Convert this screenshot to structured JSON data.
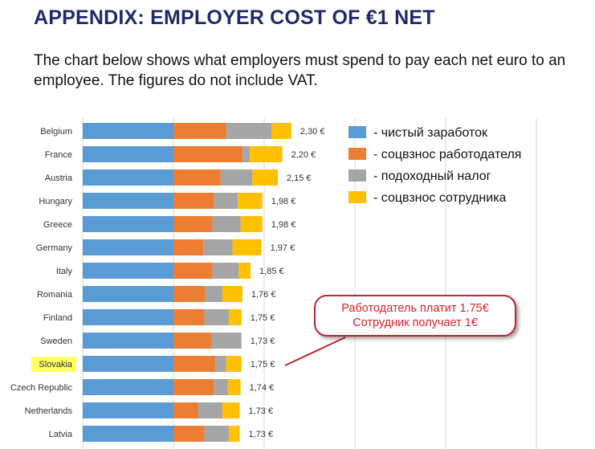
{
  "header": {
    "title": "APPENDIX: EMPLOYER COST OF €1 NET",
    "subtitle": "The chart below shows what employers must spend to pay each net euro to an employee. The figures do not include VAT."
  },
  "colors": {
    "net": "#5b9bd5",
    "employer_social": "#ed7d31",
    "income_tax": "#a5a5a5",
    "employee_social": "#ffc000",
    "highlight": "#ffff66",
    "callout_border": "#c0262d",
    "callout_text": "#e0202a"
  },
  "callout": {
    "line1": "Работодатель платит 1.75€",
    "line2": "Сотрудник получает 1€"
  },
  "chart_data": {
    "type": "bar",
    "orientation": "horizontal",
    "stacked": true,
    "grid": true,
    "legend_position": "right",
    "highlighted_category": "Slovakia",
    "categories": [
      "Belgium",
      "France",
      "Austria",
      "Hungary",
      "Greece",
      "Germany",
      "Italy",
      "Romania",
      "Finland",
      "Sweden",
      "Slovakia",
      "Czech Republic",
      "Netherlands",
      "Latvia"
    ],
    "totals_labels": [
      "2,30 €",
      "2,20 €",
      "2,15 €",
      "1,98 €",
      "1,98 €",
      "1,97 €",
      "1,85 €",
      "1,76 €",
      "1,75 €",
      "1,73 €",
      "1,75 €",
      "1,74 €",
      "1,73 €",
      "1,73 €"
    ],
    "series": [
      {
        "name": "- чистый заработок",
        "values": [
          1.0,
          1.0,
          1.0,
          1.0,
          1.0,
          1.0,
          1.0,
          1.0,
          1.0,
          1.0,
          1.0,
          1.0,
          1.0,
          1.0
        ]
      },
      {
        "name": "- соцвзнос работодателя",
        "values": [
          0.58,
          0.76,
          0.52,
          0.45,
          0.43,
          0.33,
          0.43,
          0.35,
          0.34,
          0.42,
          0.46,
          0.45,
          0.27,
          0.34
        ]
      },
      {
        "name": "- подоходный налог",
        "values": [
          0.5,
          0.08,
          0.35,
          0.26,
          0.31,
          0.32,
          0.29,
          0.19,
          0.27,
          0.33,
          0.12,
          0.15,
          0.27,
          0.27
        ]
      },
      {
        "name": "- соцвзнос сотрудника",
        "values": [
          0.22,
          0.36,
          0.28,
          0.27,
          0.24,
          0.32,
          0.13,
          0.22,
          0.14,
          0.0,
          0.17,
          0.14,
          0.19,
          0.12
        ]
      }
    ]
  }
}
